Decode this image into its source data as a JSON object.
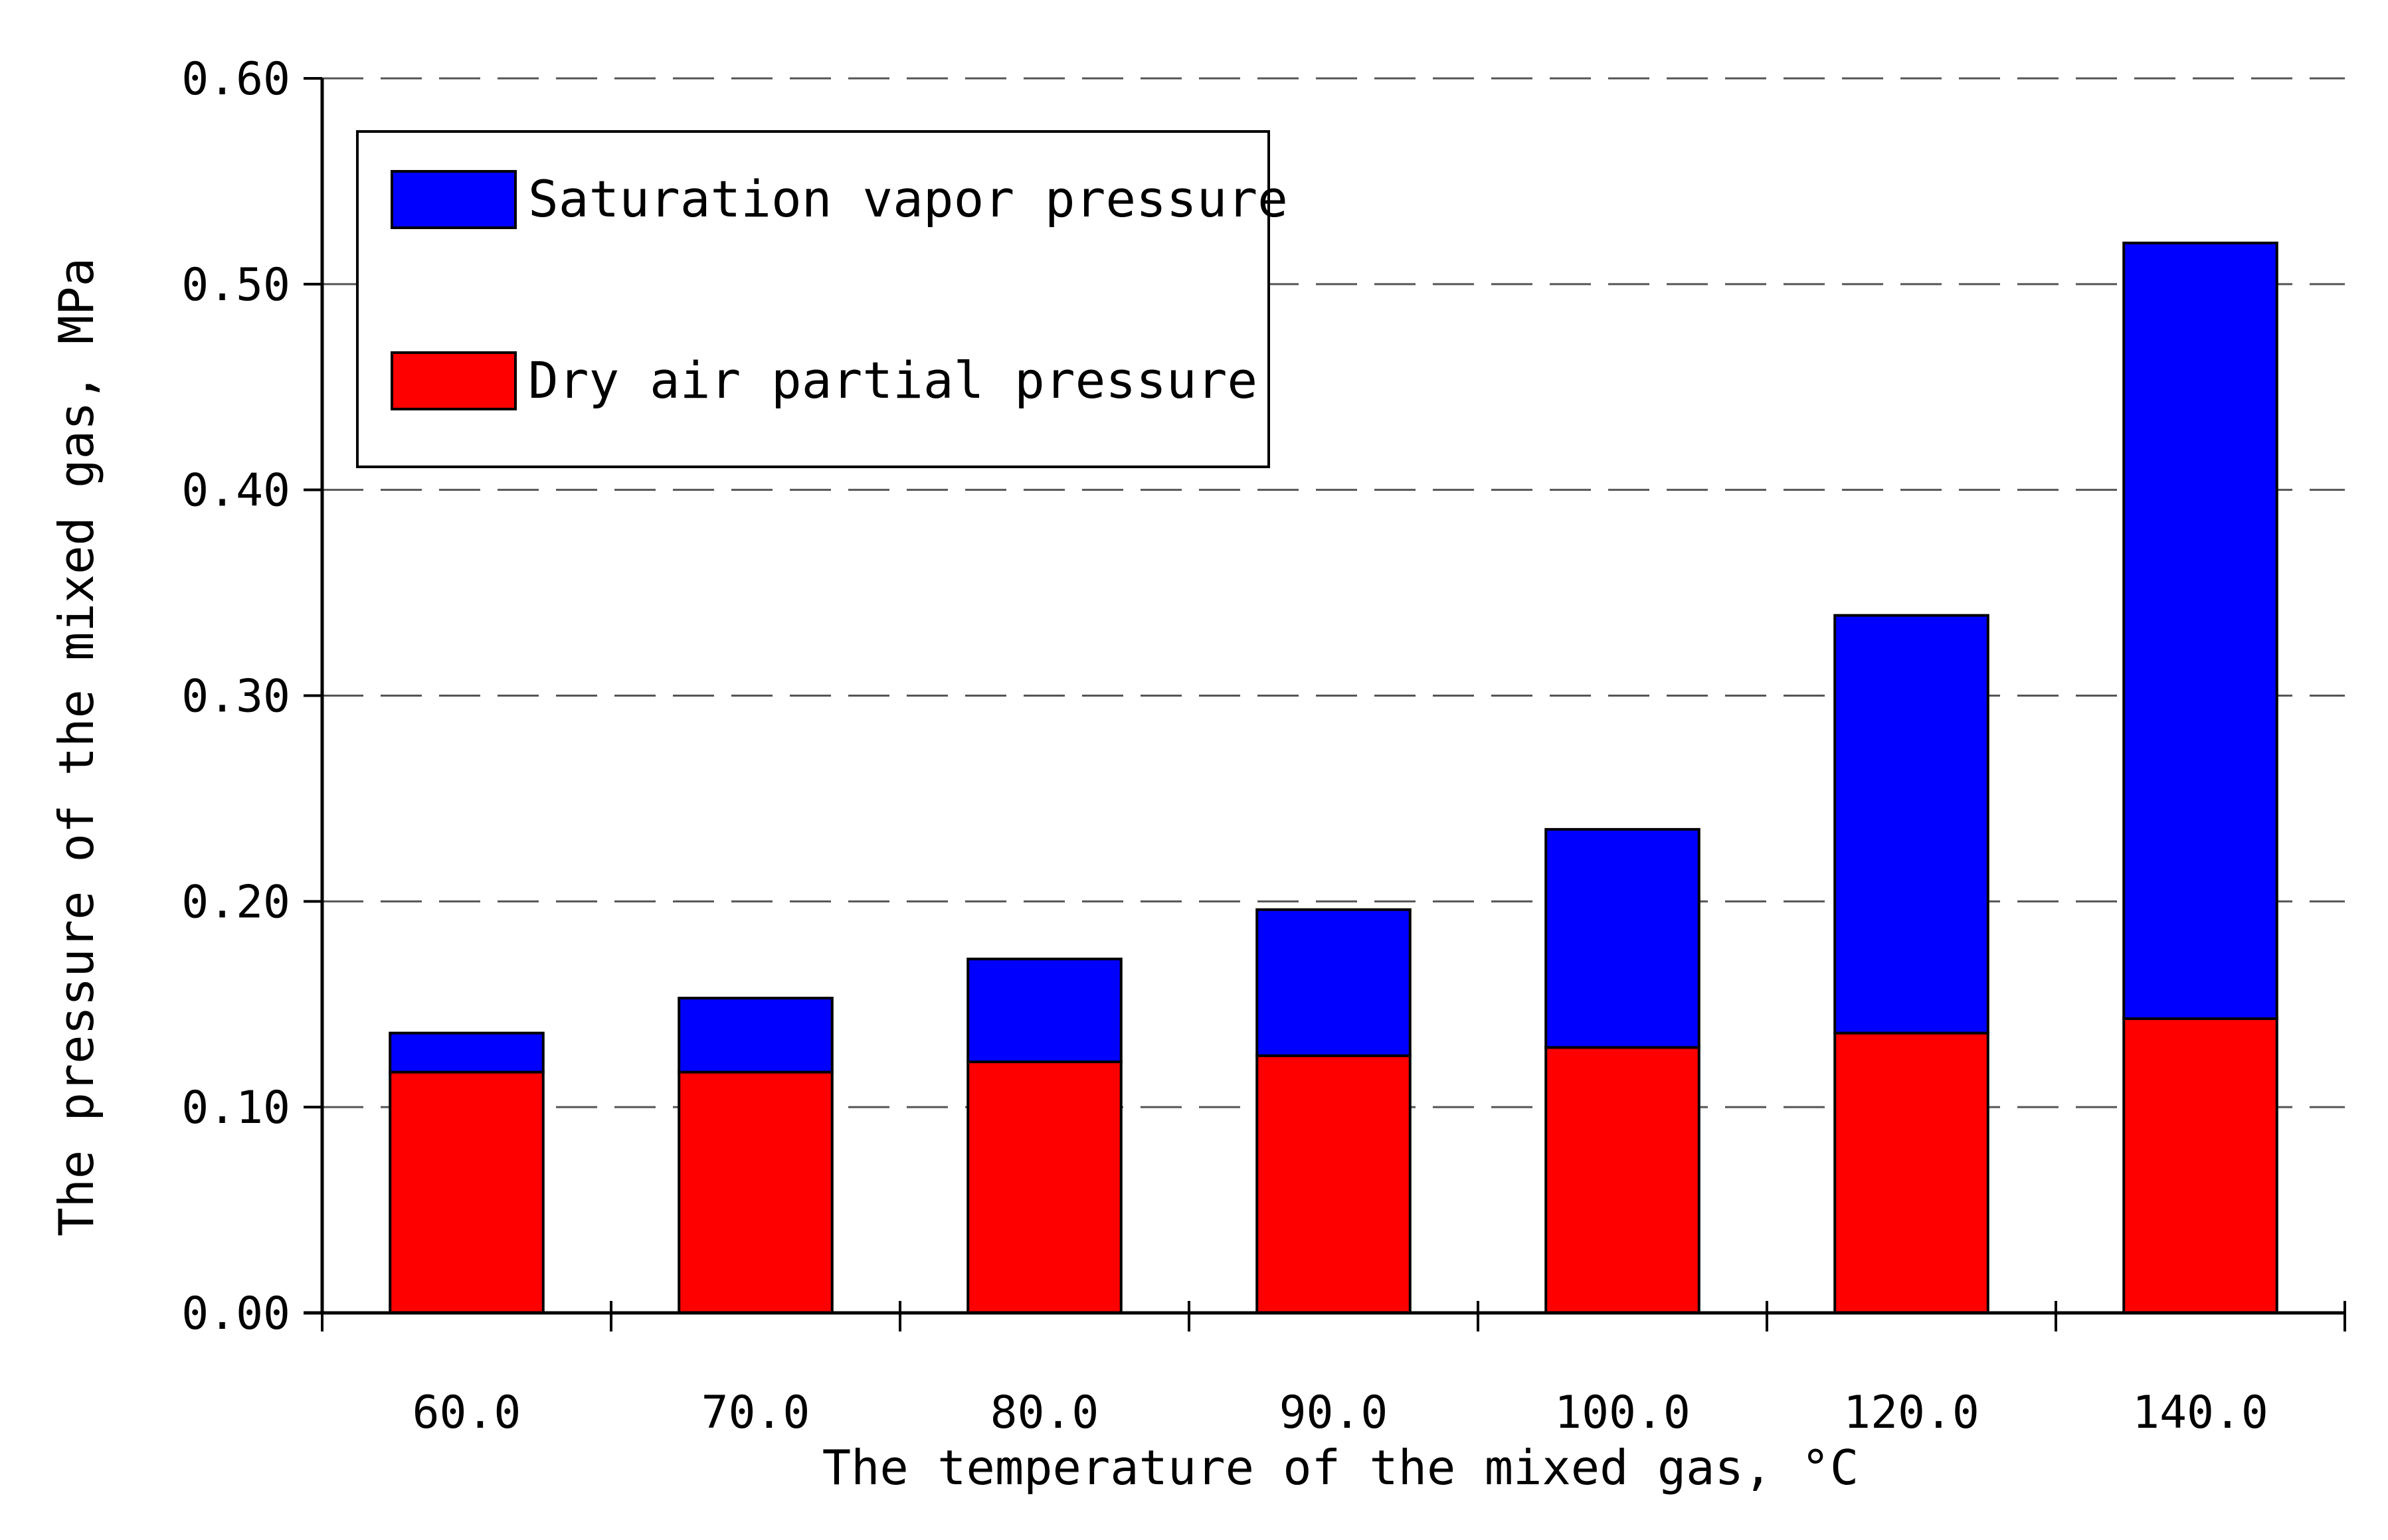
{
  "chart_data": {
    "type": "bar",
    "stacked": true,
    "title": "",
    "xlabel": "The temperature of the mixed gas, °C",
    "ylabel": "The pressure of the mixed gas, MPa",
    "categories": [
      "60.0",
      "70.0",
      "80.0",
      "90.0",
      "100.0",
      "120.0",
      "140.0"
    ],
    "series": [
      {
        "name": "Dry air partial pressure",
        "color": "#ff0000",
        "values": [
          0.117,
          0.117,
          0.122,
          0.125,
          0.129,
          0.136,
          0.143
        ]
      },
      {
        "name": "Saturation vapor pressure",
        "color": "#0000ff",
        "values": [
          0.019,
          0.036,
          0.05,
          0.071,
          0.106,
          0.203,
          0.377
        ]
      }
    ],
    "totals": [
      0.136,
      0.153,
      0.172,
      0.196,
      0.235,
      0.339,
      0.52
    ],
    "ylim": [
      0,
      0.6
    ],
    "yticks": [
      "0.00",
      "0.10",
      "0.20",
      "0.30",
      "0.40",
      "0.50",
      "0.60"
    ],
    "grid": "horizontal-dashed",
    "legend": {
      "position": "top-left",
      "entries": [
        {
          "label": "Saturation vapor pressure",
          "color": "#0000ff"
        },
        {
          "label": "Dry air partial pressure",
          "color": "#ff0000"
        }
      ]
    }
  }
}
